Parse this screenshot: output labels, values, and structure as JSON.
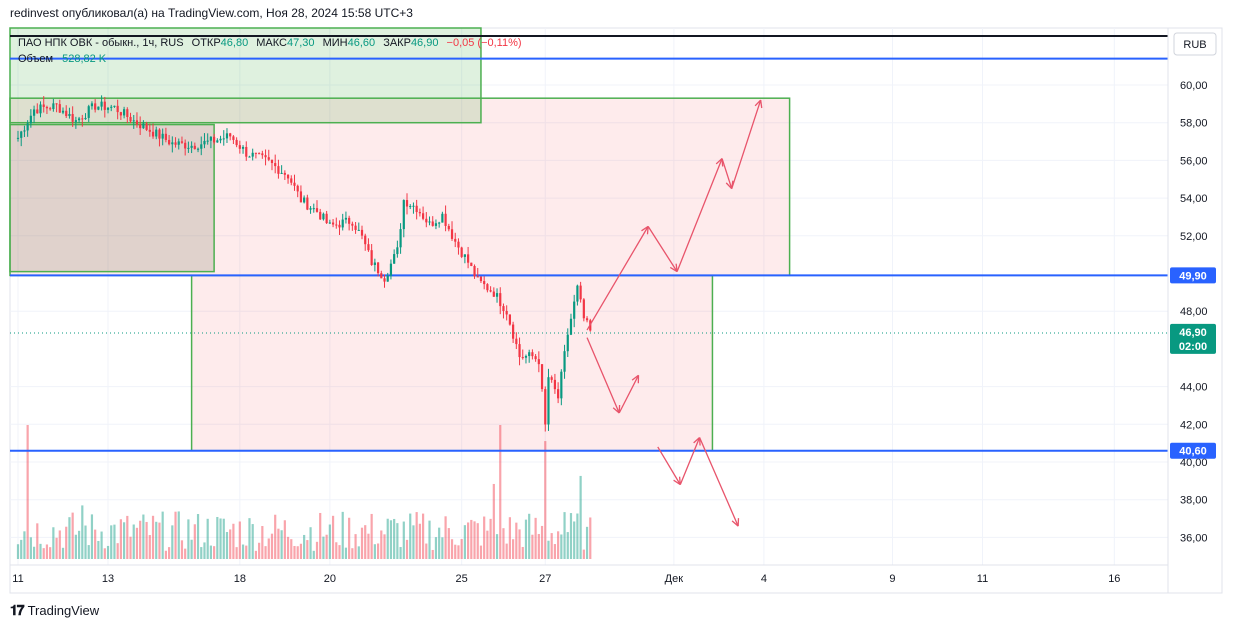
{
  "header": {
    "text": "redinvest опубликовал(а) на TradingView.com, Ноя 28, 2024 15:58 UTC+3"
  },
  "legend": {
    "symbol": "ПАО НПК ОВК - обыкн., 1ч, RUS",
    "open_label": "ОТКР",
    "open": "46,80",
    "high_label": "МАКС",
    "high": "47,30",
    "low_label": "МИН",
    "low": "46,60",
    "close_label": "ЗАКР",
    "close": "46,90",
    "change": "−0,05 (−0,11%)",
    "volume_label": "Объем",
    "volume": "528,82 K"
  },
  "currency": "RUB",
  "footer": {
    "brand": "TradingView"
  },
  "colors": {
    "up": "#089981",
    "down": "#f23645",
    "level": "#2962ff",
    "zone": "#4caf50",
    "arrow": "#e8546b"
  },
  "chart_data": {
    "type": "candlestick",
    "y_ticks": [
      "60,00",
      "58,00",
      "56,00",
      "54,00",
      "52,00",
      "48,00",
      "44,00",
      "42,00",
      "40,00",
      "38,00",
      "36,00"
    ],
    "y_range": [
      35,
      62.5
    ],
    "x_ticks": [
      {
        "label": "11",
        "i": 0
      },
      {
        "label": "13",
        "i": 28
      },
      {
        "label": "18",
        "i": 69
      },
      {
        "label": "20",
        "i": 97
      },
      {
        "label": "25",
        "i": 138
      },
      {
        "label": "27",
        "i": 164
      },
      {
        "label": "Дек",
        "i": 204
      },
      {
        "label": "4",
        "i": 232
      },
      {
        "label": "9",
        "i": 272
      },
      {
        "label": "11",
        "i": 300
      },
      {
        "label": "16",
        "i": 341
      }
    ],
    "price_labels": [
      {
        "value": 49.9,
        "text": "49,90"
      },
      {
        "value": 40.6,
        "text": "40,60"
      },
      {
        "value": 46.9,
        "text": "46,90",
        "sub": "02:00"
      }
    ],
    "levels": [
      61.4,
      49.9,
      40.6
    ],
    "zones": [
      {
        "from_i": -4,
        "to_i": 240,
        "low": 49.9,
        "high": 59.3
      },
      {
        "from_i": 54,
        "to_i": 216,
        "low": 40.6,
        "high": 49.9
      },
      {
        "from_i": -4,
        "to_i": 61,
        "low": 50.1,
        "high": 57.9
      },
      {
        "from_i": -4,
        "to_i": 144,
        "low": 58.0,
        "high": 64.0
      }
    ],
    "arrows": [
      [
        [
          177,
          47.0
        ],
        [
          196,
          52.5
        ]
      ],
      [
        [
          196,
          52.5
        ],
        [
          205,
          50.1
        ]
      ],
      [
        [
          205,
          50.1
        ],
        [
          219,
          56.1
        ]
      ],
      [
        [
          219,
          56.1
        ],
        [
          222,
          54.5
        ]
      ],
      [
        [
          222,
          54.5
        ],
        [
          231,
          59.2
        ]
      ],
      [
        [
          177,
          46.6
        ],
        [
          187,
          42.6
        ]
      ],
      [
        [
          187,
          42.6
        ],
        [
          193,
          44.6
        ]
      ],
      [
        [
          199,
          40.8
        ],
        [
          206,
          38.8
        ]
      ],
      [
        [
          206,
          38.8
        ],
        [
          212,
          41.3
        ]
      ],
      [
        [
          212,
          41.3
        ],
        [
          224,
          36.6
        ]
      ]
    ],
    "anchors": [
      [
        0,
        57.2
      ],
      [
        5,
        58.7
      ],
      [
        12,
        58.9
      ],
      [
        18,
        58.1
      ],
      [
        24,
        58.9
      ],
      [
        30,
        58.8
      ],
      [
        36,
        58.1
      ],
      [
        42,
        57.5
      ],
      [
        48,
        56.9
      ],
      [
        54,
        56.8
      ],
      [
        60,
        57.0
      ],
      [
        66,
        57.3
      ],
      [
        71,
        56.4
      ],
      [
        78,
        55.9
      ],
      [
        84,
        55.2
      ],
      [
        88,
        53.9
      ],
      [
        93,
        53.3
      ],
      [
        97,
        52.5
      ],
      [
        101,
        52.7
      ],
      [
        104,
        52.8
      ],
      [
        107,
        51.9
      ],
      [
        110,
        50.6
      ],
      [
        114,
        49.8
      ],
      [
        118,
        51.2
      ],
      [
        120,
        53.9
      ],
      [
        124,
        53.5
      ],
      [
        128,
        52.6
      ],
      [
        132,
        53.1
      ],
      [
        136,
        51.7
      ],
      [
        140,
        50.6
      ],
      [
        143,
        49.6
      ],
      [
        148,
        49.0
      ],
      [
        152,
        48.0
      ],
      [
        156,
        45.6
      ],
      [
        160,
        45.6
      ],
      [
        162,
        45.4
      ],
      [
        164,
        41.9
      ],
      [
        165,
        44.5
      ],
      [
        168,
        43.4
      ],
      [
        171,
        46.8
      ],
      [
        174,
        49.2
      ],
      [
        176,
        47.6
      ],
      [
        178,
        46.9
      ]
    ],
    "volume": {
      "base_value": 30,
      "spikes": [
        {
          "i": 3,
          "v": 100,
          "dir": "down"
        },
        {
          "i": 20,
          "v": 40,
          "dir": "up"
        },
        {
          "i": 150,
          "v": 100,
          "dir": "down"
        },
        {
          "i": 164,
          "v": 88,
          "dir": "down"
        },
        {
          "i": 148,
          "v": 56,
          "dir": "down"
        },
        {
          "i": 170,
          "v": 35,
          "dir": "up"
        },
        {
          "i": 175,
          "v": 62,
          "dir": "up"
        },
        {
          "i": 177,
          "v": 24,
          "dir": "up"
        }
      ]
    }
  }
}
